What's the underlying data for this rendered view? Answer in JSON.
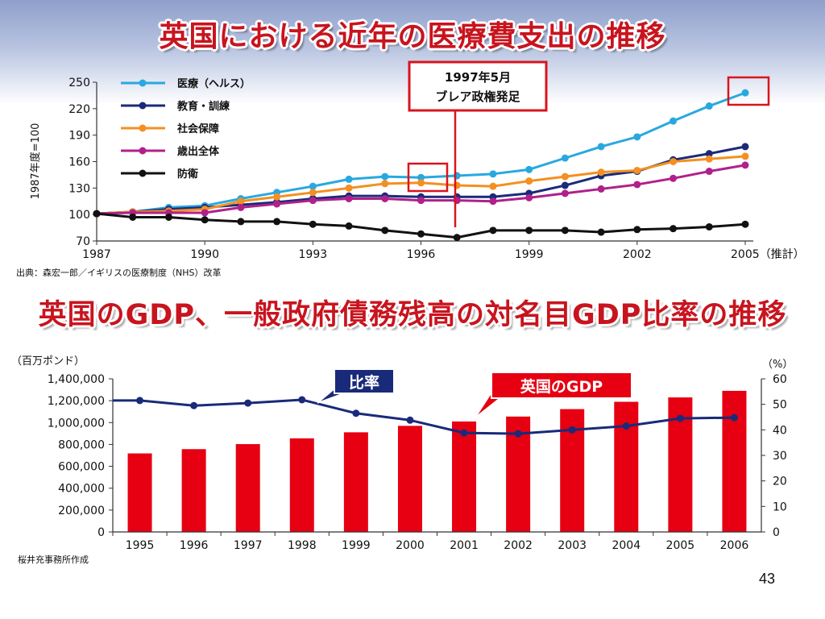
{
  "page": {
    "number": "43"
  },
  "slide1": {
    "title": "英国における近年の医療費支出の推移",
    "source": "出典：森宏一郎／イギリスの医療制度（NHS）改革",
    "annotation": "1997年5月\nブレア政権発足"
  },
  "slide2": {
    "title": "英国のGDP、一般政府債務残高の対名目GDP比率の推移",
    "source": "桜井充事務所作成",
    "callout_ratio": "比率",
    "callout_gdp": "英国のGDP"
  },
  "chart_data": [
    {
      "type": "line",
      "ylabel": "1987年度=100",
      "xlim": [
        1987,
        2005
      ],
      "ylim": [
        70,
        250
      ],
      "yticks": [
        70,
        100,
        130,
        160,
        190,
        220,
        250
      ],
      "xticks": [
        "1987",
        "1990",
        "1993",
        "1996",
        "1999",
        "2002",
        "2005（推計）"
      ],
      "legend_position": "top-left",
      "x": [
        1987,
        1988,
        1989,
        1990,
        1991,
        1992,
        1993,
        1994,
        1995,
        1996,
        1997,
        1998,
        1999,
        2000,
        2001,
        2002,
        2003,
        2004,
        2005
      ],
      "series": [
        {
          "name": "医療（ヘルス）",
          "color": "#29a8e0",
          "values": [
            101,
            103,
            108,
            110,
            118,
            125,
            132,
            140,
            143,
            142,
            144,
            146,
            151,
            164,
            177,
            188,
            206,
            223,
            238
          ]
        },
        {
          "name": "教育・訓練",
          "color": "#1a2a7a",
          "values": [
            101,
            103,
            106,
            108,
            111,
            114,
            118,
            121,
            121,
            120,
            120,
            120,
            124,
            133,
            144,
            149,
            162,
            169,
            177
          ]
        },
        {
          "name": "社会保障",
          "color": "#f39021",
          "values": [
            101,
            103,
            104,
            106,
            115,
            120,
            125,
            130,
            135,
            136,
            133,
            132,
            138,
            143,
            148,
            150,
            160,
            163,
            166
          ]
        },
        {
          "name": "歳出全体",
          "color": "#b0208a",
          "values": [
            101,
            102,
            102,
            102,
            108,
            112,
            116,
            118,
            118,
            116,
            116,
            115,
            119,
            124,
            129,
            134,
            141,
            149,
            156
          ]
        },
        {
          "name": "防衛",
          "color": "#111111",
          "values": [
            101,
            97,
            97,
            94,
            92,
            92,
            89,
            87,
            82,
            78,
            74,
            82,
            82,
            82,
            80,
            83,
            84,
            86,
            89
          ]
        }
      ]
    },
    {
      "type": "bar",
      "ylabel": "（百万ポンド）",
      "y2label": "（%）",
      "categories": [
        "1995",
        "1996",
        "1997",
        "1998",
        "1999",
        "2000",
        "2001",
        "2002",
        "2003",
        "2004",
        "2005",
        "2006"
      ],
      "ylim": [
        0,
        1400000
      ],
      "yticks": [
        "0",
        "200,000",
        "400,000",
        "600,000",
        "800,000",
        "1,000,000",
        "1,200,000",
        "1,400,000"
      ],
      "y2lim": [
        0,
        60
      ],
      "y2ticks": [
        "0",
        "10",
        "20",
        "30",
        "40",
        "50",
        "60"
      ],
      "series": [
        {
          "name": "英国のGDP",
          "kind": "bar",
          "color": "#e60012",
          "values": [
            718000,
            757000,
            803000,
            856000,
            911000,
            970000,
            1010000,
            1055000,
            1123000,
            1190000,
            1230000,
            1290000
          ]
        },
        {
          "name": "比率",
          "kind": "line",
          "axis": "right",
          "color": "#1a2a7a",
          "values": [
            51.5,
            49.5,
            50.5,
            51.8,
            46.5,
            43.8,
            38.8,
            38.5,
            40.0,
            41.5,
            44.5,
            44.8
          ]
        }
      ]
    }
  ]
}
